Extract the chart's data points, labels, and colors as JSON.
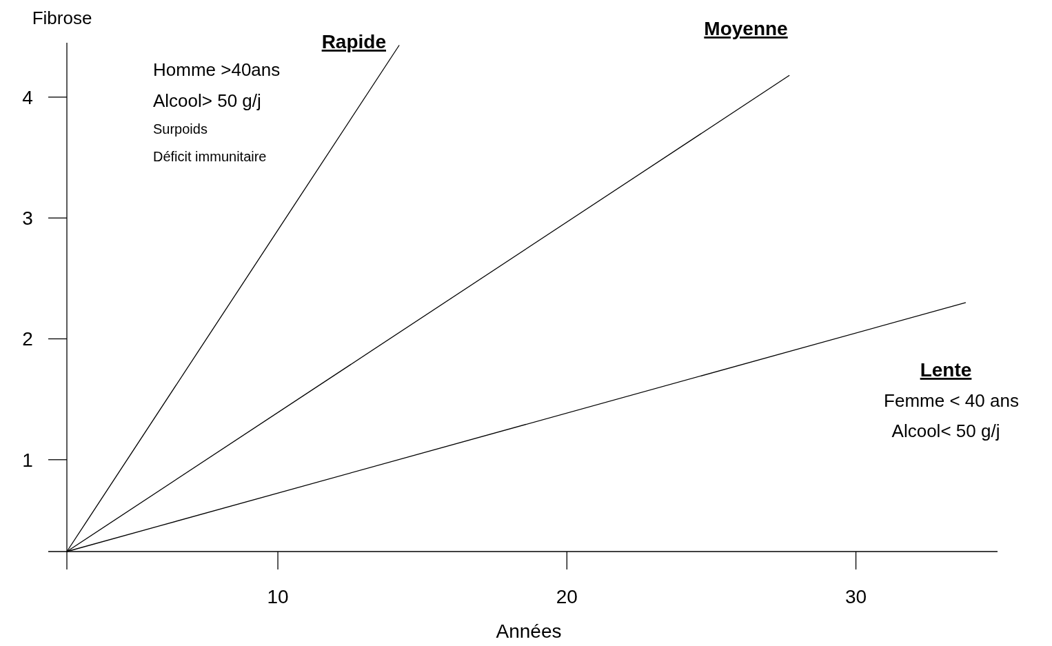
{
  "chart_data": {
    "type": "line",
    "xlabel": "Années",
    "ylabel": "Fibrose",
    "xlim": [
      2.7,
      34.9
    ],
    "ylim": [
      0.24,
      4.45
    ],
    "xticks": [
      10,
      20,
      30
    ],
    "yticks": [
      1,
      2,
      3,
      4
    ],
    "grid": false,
    "legend": false,
    "marker": "none",
    "line_style": "solid",
    "series": [
      {
        "name": "Rapide",
        "color": "#000000",
        "x": [
          2.7,
          14.2
        ],
        "values": [
          0.24,
          4.43
        ]
      },
      {
        "name": "Moyenne",
        "color": "#000000",
        "x": [
          2.7,
          27.7
        ],
        "values": [
          0.24,
          4.18
        ]
      },
      {
        "name": "Lente",
        "color": "#000000",
        "x": [
          2.7,
          33.8
        ],
        "values": [
          0.24,
          2.3
        ]
      }
    ],
    "annotations": [
      "Homme >40ans",
      "Alcool> 50 g/j",
      "Surpoids",
      "Déficit immunitaire",
      "Femme < 40 ans",
      "Alcool< 50 g/j"
    ]
  }
}
